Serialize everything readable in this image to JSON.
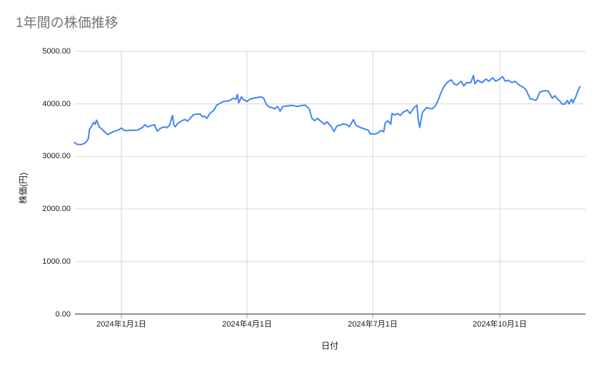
{
  "chart_data": {
    "type": "line",
    "title": "1年間の株価推移",
    "xlabel": "日付",
    "ylabel": "株価(円)",
    "ylim": [
      0,
      5000
    ],
    "grid": true,
    "legend": "none",
    "x_unit": "days_from_start_of_range",
    "x_range_days": [
      0,
      366
    ],
    "yticks": [
      {
        "value": 0,
        "label": "0.00"
      },
      {
        "value": 1000,
        "label": "1000.00"
      },
      {
        "value": 2000,
        "label": "2000.00"
      },
      {
        "value": 3000,
        "label": "3000.00"
      },
      {
        "value": 4000,
        "label": "4000.00"
      },
      {
        "value": 5000,
        "label": "5000.00"
      }
    ],
    "xticks": [
      {
        "day": 34,
        "label": "2024年1月1日"
      },
      {
        "day": 125,
        "label": "2024年4月1日"
      },
      {
        "day": 216,
        "label": "2024年7月1日"
      },
      {
        "day": 308,
        "label": "2024年10月1日"
      }
    ],
    "colors": {
      "line": "#4285f4",
      "title": "#757575",
      "label": "#1a1a1a",
      "gridline": "#d6d6d6",
      "baseline": "#333333",
      "tick": "#9e9e9e",
      "background": "#ffffff"
    },
    "series": [
      {
        "name": "株価",
        "color": "#4285f4",
        "points": [
          [
            0,
            3270
          ],
          [
            1,
            3240
          ],
          [
            2,
            3230
          ],
          [
            4,
            3225
          ],
          [
            6,
            3235
          ],
          [
            8,
            3260
          ],
          [
            9,
            3290
          ],
          [
            10,
            3335
          ],
          [
            11,
            3520
          ],
          [
            12,
            3555
          ],
          [
            13,
            3605
          ],
          [
            14,
            3650
          ],
          [
            15,
            3610
          ],
          [
            16,
            3690
          ],
          [
            17,
            3625
          ],
          [
            18,
            3560
          ],
          [
            20,
            3515
          ],
          [
            22,
            3465
          ],
          [
            24,
            3415
          ],
          [
            26,
            3440
          ],
          [
            28,
            3470
          ],
          [
            30,
            3490
          ],
          [
            32,
            3505
          ],
          [
            34,
            3540
          ],
          [
            36,
            3495
          ],
          [
            38,
            3490
          ],
          [
            41,
            3500
          ],
          [
            43,
            3495
          ],
          [
            46,
            3505
          ],
          [
            48,
            3530
          ],
          [
            50,
            3570
          ],
          [
            51,
            3605
          ],
          [
            53,
            3560
          ],
          [
            56,
            3590
          ],
          [
            58,
            3605
          ],
          [
            60,
            3480
          ],
          [
            62,
            3530
          ],
          [
            65,
            3565
          ],
          [
            67,
            3545
          ],
          [
            69,
            3600
          ],
          [
            71,
            3780
          ],
          [
            72,
            3600
          ],
          [
            73,
            3565
          ],
          [
            75,
            3635
          ],
          [
            78,
            3680
          ],
          [
            80,
            3705
          ],
          [
            82,
            3670
          ],
          [
            84,
            3730
          ],
          [
            86,
            3790
          ],
          [
            88,
            3805
          ],
          [
            91,
            3805
          ],
          [
            93,
            3750
          ],
          [
            94,
            3770
          ],
          [
            96,
            3725
          ],
          [
            98,
            3815
          ],
          [
            101,
            3880
          ],
          [
            103,
            3975
          ],
          [
            106,
            4020
          ],
          [
            108,
            4045
          ],
          [
            110,
            4055
          ],
          [
            112,
            4055
          ],
          [
            115,
            4110
          ],
          [
            117,
            4085
          ],
          [
            118,
            4180
          ],
          [
            119,
            4020
          ],
          [
            121,
            4135
          ],
          [
            122,
            4090
          ],
          [
            125,
            4045
          ],
          [
            127,
            4090
          ],
          [
            130,
            4110
          ],
          [
            132,
            4120
          ],
          [
            135,
            4135
          ],
          [
            137,
            4110
          ],
          [
            139,
            3990
          ],
          [
            141,
            3940
          ],
          [
            143,
            3930
          ],
          [
            145,
            3905
          ],
          [
            147,
            3950
          ],
          [
            149,
            3860
          ],
          [
            151,
            3950
          ],
          [
            154,
            3960
          ],
          [
            157,
            3970
          ],
          [
            159,
            3965
          ],
          [
            161,
            3950
          ],
          [
            164,
            3965
          ],
          [
            167,
            3975
          ],
          [
            170,
            3905
          ],
          [
            172,
            3725
          ],
          [
            174,
            3680
          ],
          [
            176,
            3725
          ],
          [
            179,
            3655
          ],
          [
            181,
            3610
          ],
          [
            183,
            3660
          ],
          [
            186,
            3565
          ],
          [
            188,
            3475
          ],
          [
            190,
            3580
          ],
          [
            192,
            3590
          ],
          [
            194,
            3615
          ],
          [
            197,
            3610
          ],
          [
            199,
            3565
          ],
          [
            202,
            3700
          ],
          [
            204,
            3590
          ],
          [
            206,
            3565
          ],
          [
            208,
            3540
          ],
          [
            211,
            3515
          ],
          [
            213,
            3495
          ],
          [
            214,
            3430
          ],
          [
            216,
            3430
          ],
          [
            218,
            3425
          ],
          [
            220,
            3450
          ],
          [
            222,
            3495
          ],
          [
            224,
            3470
          ],
          [
            225,
            3635
          ],
          [
            227,
            3680
          ],
          [
            229,
            3610
          ],
          [
            230,
            3815
          ],
          [
            232,
            3790
          ],
          [
            234,
            3815
          ],
          [
            236,
            3780
          ],
          [
            238,
            3840
          ],
          [
            241,
            3885
          ],
          [
            243,
            3815
          ],
          [
            246,
            3930
          ],
          [
            248,
            3975
          ],
          [
            249,
            3700
          ],
          [
            250,
            3550
          ],
          [
            252,
            3840
          ],
          [
            255,
            3930
          ],
          [
            257,
            3915
          ],
          [
            259,
            3905
          ],
          [
            261,
            3950
          ],
          [
            263,
            4045
          ],
          [
            265,
            4180
          ],
          [
            267,
            4300
          ],
          [
            269,
            4380
          ],
          [
            271,
            4430
          ],
          [
            273,
            4455
          ],
          [
            275,
            4380
          ],
          [
            277,
            4360
          ],
          [
            280,
            4430
          ],
          [
            282,
            4340
          ],
          [
            284,
            4405
          ],
          [
            287,
            4405
          ],
          [
            289,
            4540
          ],
          [
            290,
            4380
          ],
          [
            292,
            4450
          ],
          [
            295,
            4405
          ],
          [
            298,
            4475
          ],
          [
            300,
            4430
          ],
          [
            303,
            4495
          ],
          [
            305,
            4430
          ],
          [
            308,
            4475
          ],
          [
            310,
            4520
          ],
          [
            312,
            4430
          ],
          [
            314,
            4450
          ],
          [
            317,
            4405
          ],
          [
            319,
            4430
          ],
          [
            322,
            4360
          ],
          [
            325,
            4315
          ],
          [
            327,
            4270
          ],
          [
            329,
            4155
          ],
          [
            330,
            4095
          ],
          [
            332,
            4090
          ],
          [
            334,
            4065
          ],
          [
            335,
            4095
          ],
          [
            337,
            4225
          ],
          [
            339,
            4240
          ],
          [
            341,
            4250
          ],
          [
            343,
            4245
          ],
          [
            345,
            4155
          ],
          [
            346,
            4110
          ],
          [
            348,
            4155
          ],
          [
            350,
            4090
          ],
          [
            352,
            4040
          ],
          [
            353,
            4000
          ],
          [
            355,
            3995
          ],
          [
            357,
            4065
          ],
          [
            358,
            4000
          ],
          [
            360,
            4090
          ],
          [
            361,
            4020
          ],
          [
            363,
            4135
          ],
          [
            365,
            4270
          ],
          [
            366,
            4330
          ]
        ]
      }
    ]
  }
}
